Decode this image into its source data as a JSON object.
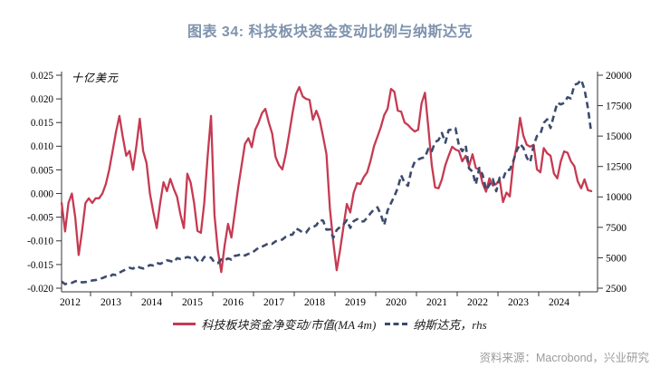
{
  "title": {
    "text": "图表 34: 科技板块资金变动比例与纳斯达克",
    "color": "#7e93ae"
  },
  "source": {
    "text": "资料来源：Macrobond，兴业研究",
    "color": "#9b9b9b"
  },
  "legend": {
    "position": "bottom-center",
    "items": [
      {
        "label": "科技板块资金净变动/市值(MA 4m)",
        "marker": "solid-line",
        "color": "#c63a52"
      },
      {
        "label": "纳斯达克，rhs",
        "marker": "dashed-line",
        "color": "#3c4b6e"
      }
    ]
  },
  "chart_data": {
    "type": "line",
    "title": "图表 34: 科技板块资金变动比例与纳斯达克",
    "unit_annotation": "十亿美元",
    "frequency": "monthly",
    "x_start": "2012-04",
    "x_end": "2025-04",
    "grid": false,
    "x_tick_labels": [
      "2012",
      "2013",
      "2014",
      "2015",
      "2016",
      "2017",
      "2018",
      "2019",
      "2020",
      "2021",
      "2022",
      "2023",
      "2024"
    ],
    "left_axis": {
      "label": "十亿美元",
      "range": [
        -0.02,
        0.025
      ],
      "ticks": [
        0.025,
        0.02,
        0.015,
        0.01,
        0.005,
        0.0,
        -0.005,
        -0.01,
        -0.015,
        -0.02
      ]
    },
    "right_axis": {
      "label": "",
      "range": [
        2500,
        20000
      ],
      "ticks": [
        20000,
        17500,
        15000,
        12500,
        10000,
        7500,
        5000,
        2500
      ]
    },
    "series": [
      {
        "name": "科技板块资金净变动/市值(MA 4m)",
        "axis": "left",
        "line_style": "solid",
        "color": "#c63a52",
        "values": [
          -0.002,
          -0.008,
          -0.002,
          0.0,
          -0.005,
          -0.013,
          -0.008,
          -0.002,
          -0.001,
          -0.002,
          -0.001,
          -0.001,
          0.0,
          0.002,
          0.005,
          0.009,
          0.013,
          0.0164,
          0.012,
          0.008,
          0.009,
          0.005,
          0.01,
          0.0158,
          0.009,
          0.0064,
          0.0,
          -0.004,
          -0.0073,
          -0.002,
          0.0024,
          0.0005,
          0.0031,
          0.001,
          -0.0007,
          -0.0045,
          -0.0073,
          0.0042,
          0.0023,
          -0.002,
          -0.0079,
          -0.0083,
          -0.002,
          0.008,
          0.0164,
          -0.0045,
          -0.012,
          -0.0166,
          -0.011,
          -0.0064,
          -0.0093,
          -0.004,
          0.0013,
          0.006,
          0.0105,
          0.0117,
          0.0098,
          0.0135,
          0.015,
          0.017,
          0.0179,
          0.015,
          0.0127,
          0.0077,
          0.006,
          0.0051,
          0.0083,
          0.0126,
          0.017,
          0.021,
          0.0225,
          0.0205,
          0.02,
          0.0198,
          0.0156,
          0.0175,
          0.0156,
          0.012,
          0.0083,
          -0.0032,
          -0.0102,
          -0.0162,
          -0.012,
          -0.007,
          -0.0022,
          -0.004,
          0.0001,
          0.0022,
          0.002,
          0.0035,
          0.0045,
          0.007,
          0.01,
          0.012,
          0.014,
          0.0166,
          0.0179,
          0.0221,
          0.0215,
          0.0175,
          0.0173,
          0.015,
          0.0145,
          0.0137,
          0.0131,
          0.0135,
          0.019,
          0.0213,
          0.014,
          0.006,
          0.0013,
          0.0011,
          0.003,
          0.006,
          0.008,
          0.0099,
          0.0093,
          0.009,
          0.0068,
          0.008,
          0.0058,
          0.0083,
          0.0054,
          0.0051,
          0.0021,
          0.0004,
          0.0032,
          0.0017,
          0.002,
          0.003,
          -0.0018,
          0.0002,
          -0.0006,
          0.0064,
          0.0099,
          0.016,
          0.0122,
          0.0103,
          0.0099,
          0.0103,
          0.0051,
          0.0045,
          0.0096,
          0.0085,
          0.008,
          0.0042,
          0.0032,
          0.0068,
          0.0089,
          0.0086,
          0.0068,
          0.0058,
          0.0026,
          0.0011,
          0.003,
          0.0007,
          0.0005
        ]
      },
      {
        "name": "纳斯达克，rhs",
        "axis": "right",
        "line_style": "dashed",
        "color": "#3c4b6e",
        "values": [
          3046,
          2827,
          2935,
          2940,
          3067,
          3116,
          2977,
          3010,
          3020,
          3142,
          3160,
          3268,
          3329,
          3456,
          3403,
          3626,
          3590,
          3771,
          3920,
          4060,
          4177,
          4104,
          4308,
          4199,
          4115,
          4243,
          4408,
          4370,
          4580,
          4493,
          4631,
          4792,
          4736,
          4635,
          4964,
          4901,
          4941,
          5070,
          4987,
          5128,
          4777,
          4620,
          5054,
          5109,
          5007,
          4614,
          4558,
          4870,
          4775,
          4948,
          4843,
          5162,
          5213,
          5312,
          5189,
          5324,
          5383,
          5615,
          5825,
          5912,
          6048,
          6199,
          6140,
          6348,
          6429,
          6496,
          6728,
          6874,
          6903,
          7411,
          7273,
          7063,
          7066,
          7442,
          7510,
          7672,
          8110,
          8046,
          7306,
          7331,
          6635,
          7282,
          7533,
          7729,
          8095,
          7453,
          8006,
          8175,
          7963,
          7999,
          8292,
          8665,
          8973,
          9151,
          8567,
          7700,
          8890,
          9490,
          10059,
          10745,
          11775,
          11168,
          10912,
          12199,
          12888,
          13071,
          13192,
          13247,
          13963,
          13749,
          14504,
          14673,
          15259,
          14449,
          15498,
          15538,
          15645,
          14240,
          13751,
          14221,
          12335,
          12081,
          11029,
          12391,
          11816,
          10576,
          10988,
          11468,
          10466,
          11585,
          11456,
          12222,
          12227,
          12935,
          13788,
          14346,
          14035,
          13219,
          12851,
          14226,
          15011,
          15164,
          16092,
          16379,
          15658,
          16735,
          17733,
          17599,
          17714,
          18189,
          18095,
          19218,
          19311,
          19627,
          18847,
          17299,
          15268
        ]
      }
    ]
  }
}
